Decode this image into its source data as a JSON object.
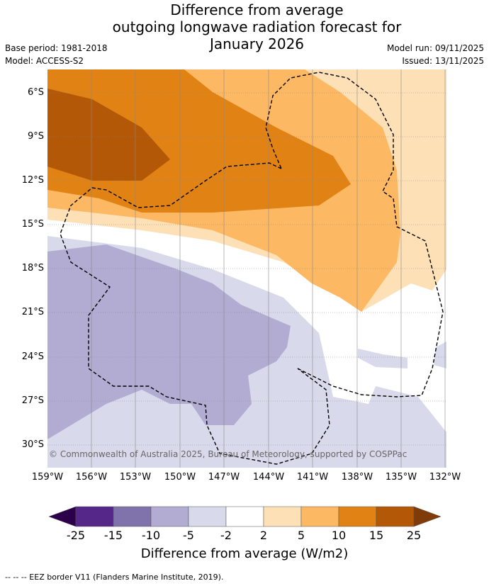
{
  "title": {
    "line1": "Difference from average",
    "line2": "outgoing longwave radiation forecast for",
    "line3": "January 2026"
  },
  "meta": {
    "base_period": "Base period: 1981-2018",
    "model": "Model: ACCESS-S2",
    "model_run": "Model run: 09/11/2025",
    "issued": "Issued: 13/11/2025"
  },
  "map": {
    "lat_labels": [
      "6°S",
      "9°S",
      "12°S",
      "15°S",
      "18°S",
      "21°S",
      "24°S",
      "27°S",
      "30°S"
    ],
    "lon_labels": [
      "159°W",
      "156°W",
      "153°W",
      "150°W",
      "147°W",
      "144°W",
      "141°W",
      "138°W",
      "135°W",
      "132°W"
    ],
    "copyright": "© Commonwealth of Australia 2025, Bureau of Meteorology, supported by COSPPac",
    "colors": {
      "dark_purple": "#542788",
      "purple": "#8073ac",
      "mid_purple": "#b2abd2",
      "light_purple": "#d8daeb",
      "white": "#ffffff",
      "light_orange": "#fee0b6",
      "orange": "#fdb863",
      "dark_orange": "#e08214",
      "brown": "#b35806",
      "dark_brown": "#7f3b08"
    }
  },
  "colorbar": {
    "ticks": [
      "-25",
      "-15",
      "-10",
      "-5",
      "-2",
      "2",
      "5",
      "10",
      "15",
      "25"
    ],
    "label": "Difference from average (W/m2)"
  },
  "footnote": "--  --  -- EEZ border V11 (Flanders Marine Institute, 2019)."
}
